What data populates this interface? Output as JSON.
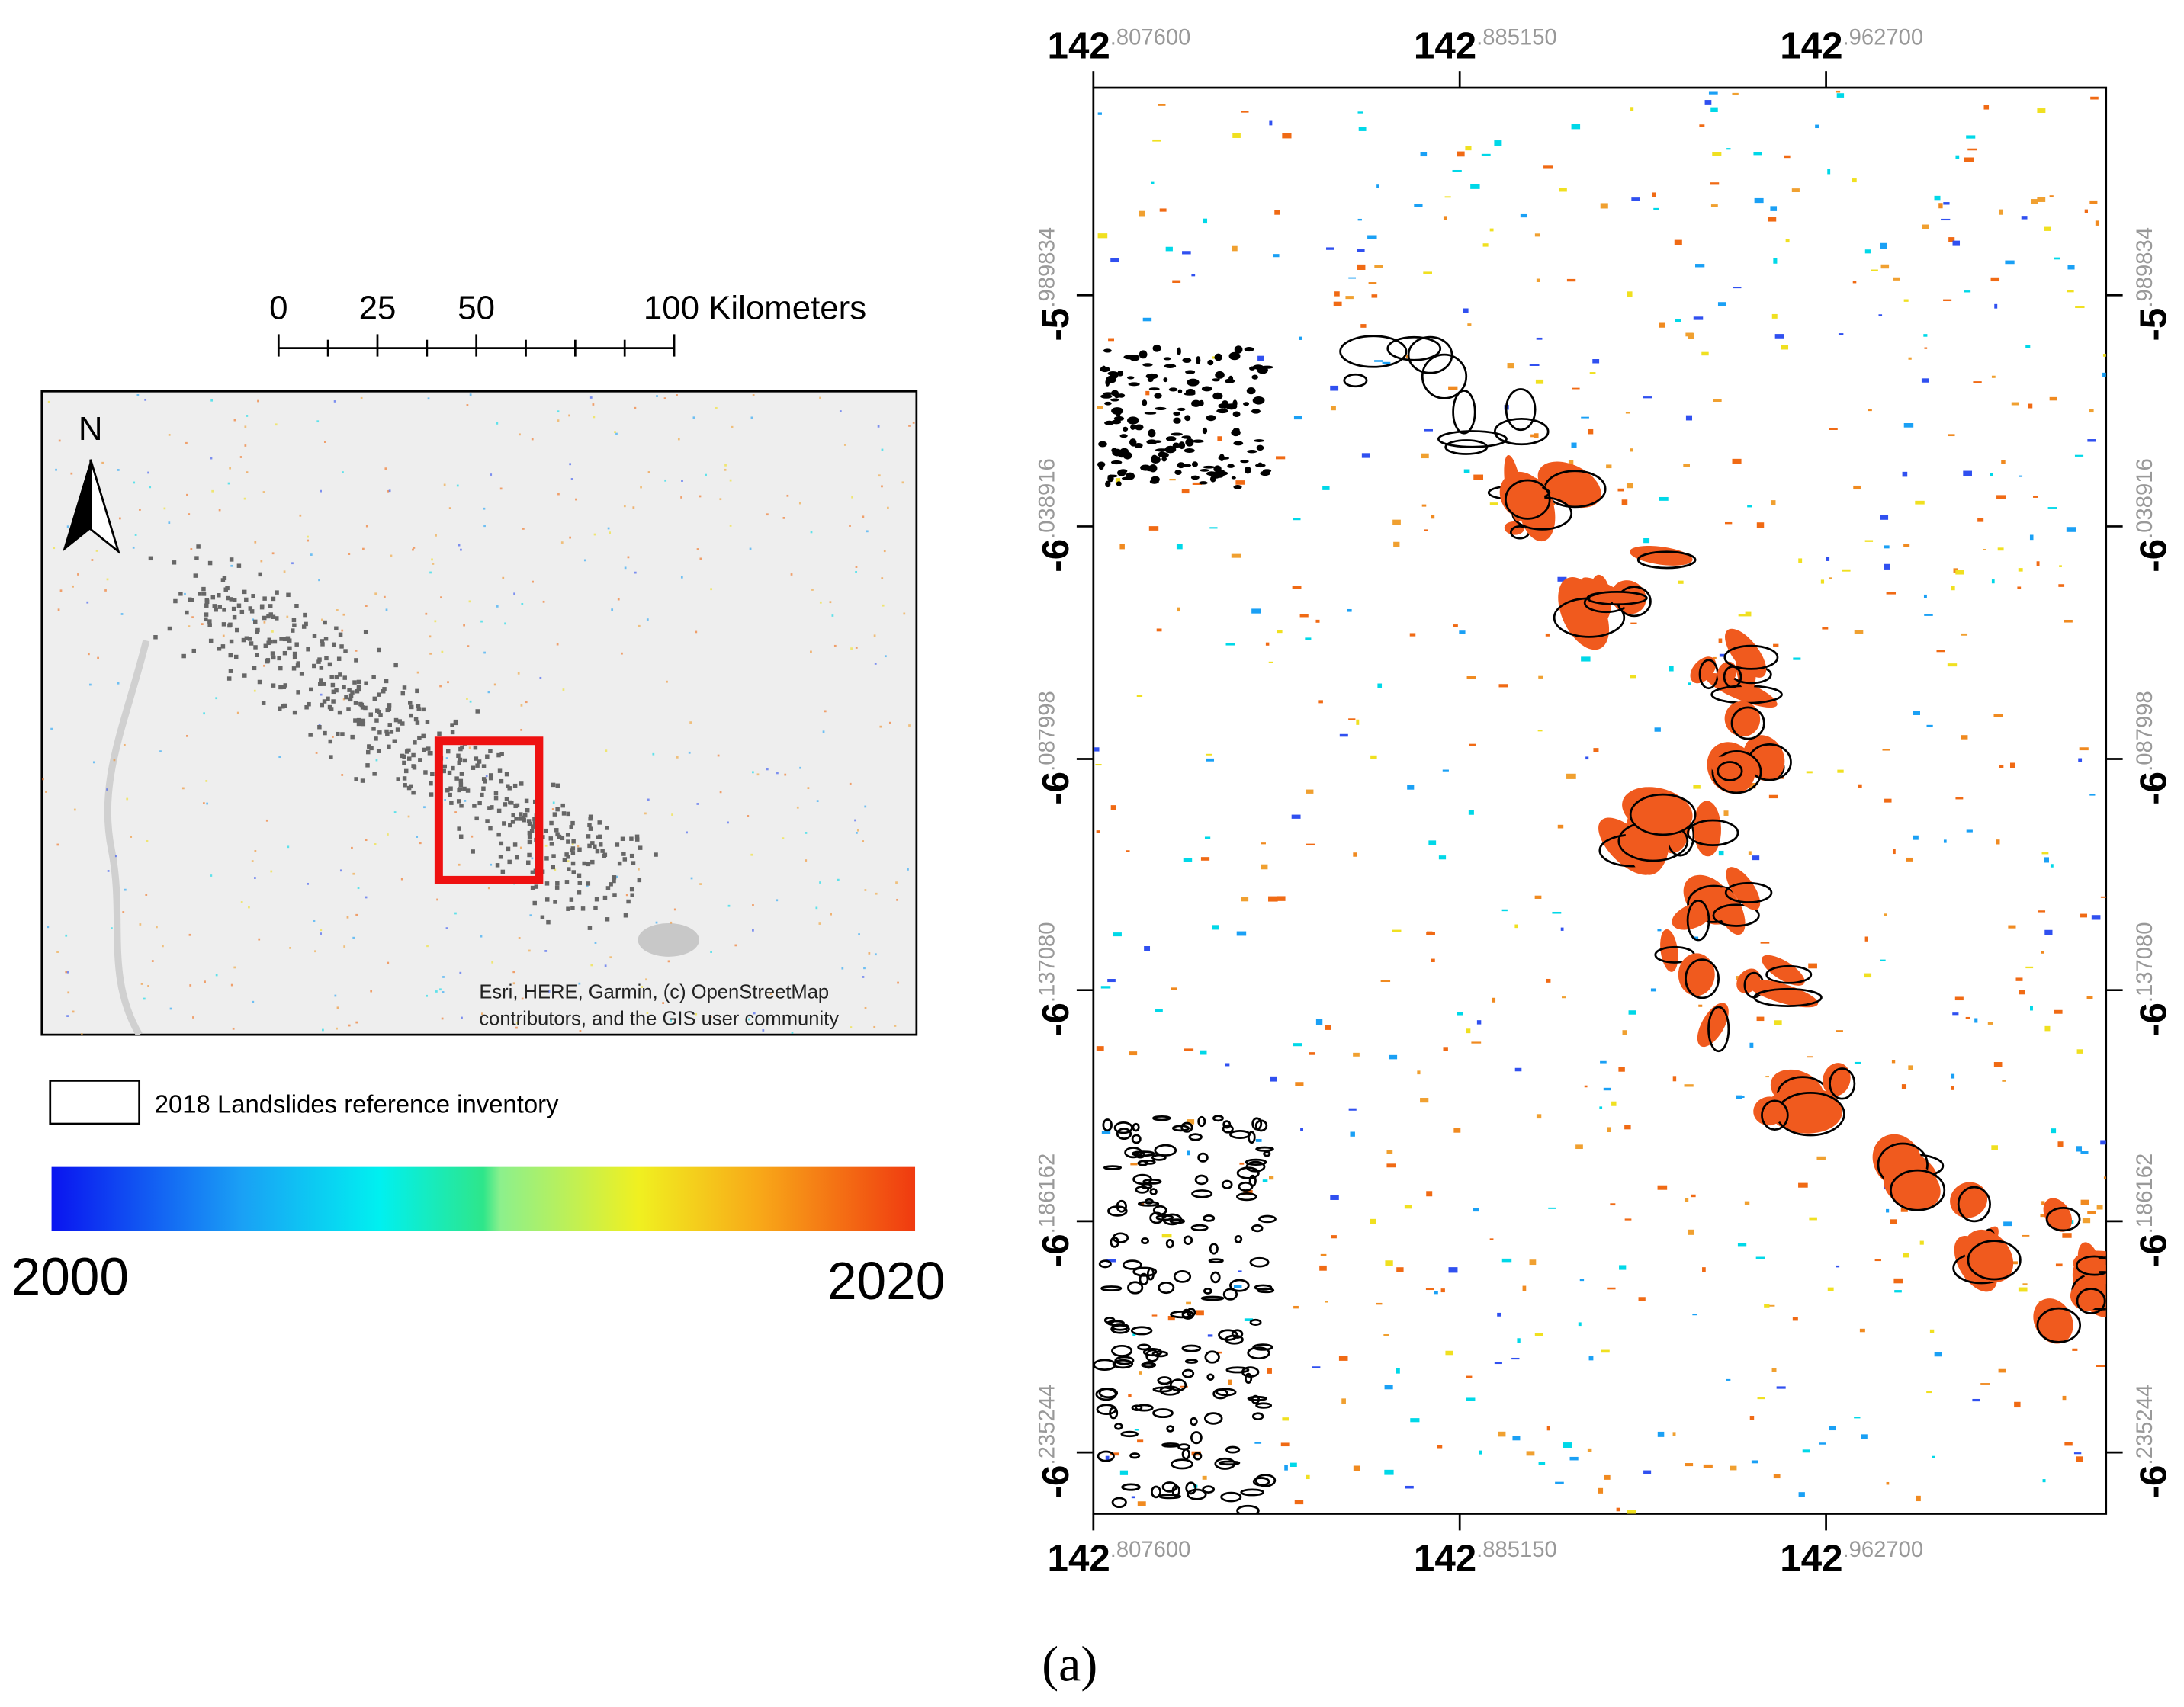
{
  "scale_bar": {
    "labels": [
      "0",
      "25",
      "50",
      "100 Kilometers"
    ]
  },
  "north_label": "N",
  "attribution": [
    "Esri, HERE, Garmin, (c) OpenStreetMap",
    "contributors, and the GIS user community"
  ],
  "legend": {
    "label": "2018 Landslides reference inventory"
  },
  "colorbar": {
    "min_label": "2000",
    "max_label": "2020"
  },
  "map": {
    "x_ticks": [
      {
        "major": "142",
        "minor": ".807600"
      },
      {
        "major": "142",
        "minor": ".885150"
      },
      {
        "major": "142",
        "minor": ".962700"
      }
    ],
    "y_ticks": [
      {
        "major": "-5",
        "minor": ".989834"
      },
      {
        "major": "-6",
        "minor": ".038916"
      },
      {
        "major": "-6",
        "minor": ".087998"
      },
      {
        "major": "-6",
        "minor": ".137080"
      },
      {
        "major": "-6",
        "minor": ".186162"
      },
      {
        "major": "-6",
        "minor": ".235244"
      }
    ]
  },
  "caption": "(a)"
}
